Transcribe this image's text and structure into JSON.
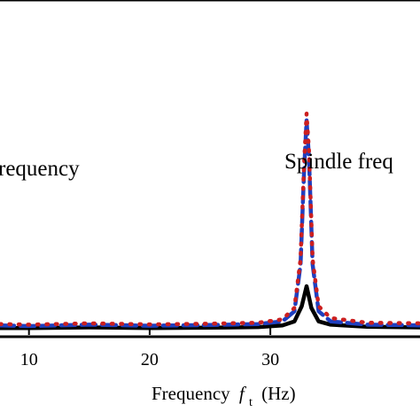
{
  "chart_data": {
    "type": "line",
    "xlabel": "Frequency",
    "xlabel_symbol": "f",
    "xlabel_subscript": "t",
    "xlabel_unit": "(Hz)",
    "xlim": [
      7.6,
      42.4
    ],
    "ylim": [
      0,
      1.0
    ],
    "xticks": [
      {
        "value": 10,
        "label": "10"
      },
      {
        "value": 20,
        "label": "20"
      },
      {
        "value": 30,
        "label": "30"
      }
    ],
    "annotations": [
      {
        "text": "requency",
        "x": 7.6,
        "y": 0.55
      },
      {
        "text": "Spindle freq",
        "x": 29.3,
        "y": 0.55
      }
    ],
    "series": [
      {
        "style": "solid",
        "color": "#000000",
        "x": [
          7.6,
          10,
          15,
          20,
          25,
          29,
          31,
          32,
          32.6,
          33.0,
          33.4,
          34,
          35,
          38,
          42.4
        ],
        "y": [
          0.01,
          0.01,
          0.012,
          0.01,
          0.011,
          0.013,
          0.018,
          0.03,
          0.075,
          0.135,
          0.07,
          0.03,
          0.02,
          0.014,
          0.012
        ]
      },
      {
        "style": "dashed",
        "color": "#1f3fbf",
        "x": [
          7.6,
          10,
          15,
          20,
          25,
          29,
          31,
          32,
          32.5,
          32.8,
          33.0,
          33.2,
          33.5,
          34,
          35,
          38,
          42.4
        ],
        "y": [
          0.018,
          0.016,
          0.02,
          0.017,
          0.019,
          0.022,
          0.03,
          0.06,
          0.2,
          0.48,
          0.63,
          0.52,
          0.2,
          0.06,
          0.03,
          0.02,
          0.018
        ]
      },
      {
        "style": "dotted",
        "color": "#cc1f1f",
        "x": [
          7.6,
          10,
          15,
          20,
          25,
          29,
          31,
          32,
          32.5,
          32.8,
          33.0,
          33.2,
          33.5,
          34,
          35,
          38,
          42.4
        ],
        "y": [
          0.022,
          0.02,
          0.024,
          0.021,
          0.023,
          0.026,
          0.036,
          0.07,
          0.215,
          0.5,
          0.65,
          0.54,
          0.215,
          0.075,
          0.04,
          0.026,
          0.024
        ]
      }
    ]
  }
}
